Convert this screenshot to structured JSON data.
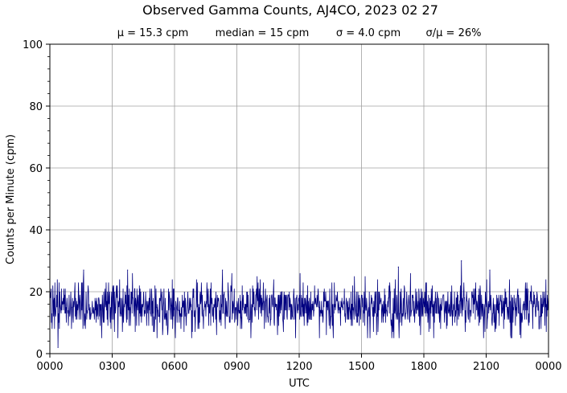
{
  "chart_data": {
    "type": "line",
    "title": "Observed Gamma Counts, AJ4CO, 2023 02 27",
    "subtitle": {
      "mean": "μ = 15.3 cpm",
      "median": "median = 15 cpm",
      "sigma": "σ = 4.0 cpm",
      "cv": "σ/μ = 26%"
    },
    "xlabel": "UTC",
    "ylabel": "Counts per Minute (cpm)",
    "x_ticks": [
      "0000",
      "0300",
      "0600",
      "0900",
      "1200",
      "1500",
      "1800",
      "2100",
      "0000"
    ],
    "y_ticks": [
      "0",
      "20",
      "40",
      "60",
      "80",
      "100"
    ],
    "ylim": [
      0,
      100
    ],
    "xlim_minutes": [
      0,
      1440
    ],
    "grid": true,
    "series": [
      {
        "color": "#000080",
        "sampling": "one value per minute, 1440 points",
        "statistics": {
          "mean": 15.3,
          "median": 15,
          "sigma": 4.0,
          "min": 2,
          "max": 30
        },
        "notable_points": [
          {
            "time": "0023",
            "value": 2
          },
          {
            "time": "0137",
            "value": 27
          },
          {
            "time": "0344",
            "value": 27
          },
          {
            "time": "0818",
            "value": 27
          },
          {
            "time": "1646",
            "value": 28
          },
          {
            "time": "1948",
            "value": 30
          },
          {
            "time": "2110",
            "value": 27
          }
        ]
      }
    ]
  }
}
